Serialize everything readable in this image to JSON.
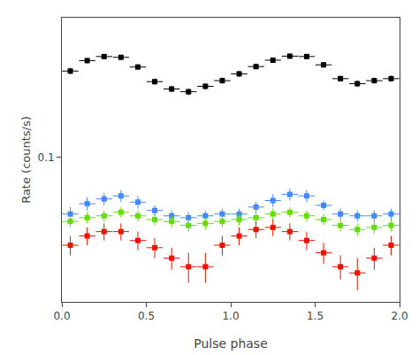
{
  "chart_data": {
    "type": "scatter",
    "xlabel": "Pulse phase",
    "ylabel": "Rate (counts/s)",
    "log": "y",
    "grid": false,
    "marker": "square",
    "xlim": [
      0.0,
      2.0
    ],
    "xticks": [
      {
        "value": 0.0,
        "label": "0.0"
      },
      0.5,
      {
        "value": 1.0,
        "label": "1.0"
      },
      1.5,
      {
        "value": 2.0,
        "label": "2.0"
      }
    ],
    "ylim": [
      0.025,
      0.38
    ],
    "yticks": [
      0.1
    ],
    "series": [
      {
        "color": "#000000",
        "x": [
          0.05,
          0.15,
          0.25,
          0.35,
          0.45,
          0.55,
          0.65,
          0.75,
          0.85,
          0.95,
          1.05,
          1.15,
          1.25,
          1.35,
          1.45,
          1.55,
          1.65,
          1.75,
          1.85,
          1.95
        ],
        "values": [
          0.228,
          0.252,
          0.262,
          0.26,
          0.237,
          0.206,
          0.192,
          0.187,
          0.197,
          0.208,
          0.222,
          0.238,
          0.253,
          0.263,
          0.262,
          0.242,
          0.212,
          0.202,
          0.208,
          0.212
        ],
        "yerr": [
          0.007,
          0.006,
          0.006,
          0.006,
          0.006,
          0.006,
          0.006,
          0.006,
          0.006,
          0.006,
          0.006,
          0.006,
          0.006,
          0.006,
          0.006,
          0.006,
          0.006,
          0.006,
          0.006,
          0.006
        ],
        "xerr": 0.048
      },
      {
        "color": "#4488ff",
        "x": [
          0.05,
          0.15,
          0.25,
          0.35,
          0.45,
          0.55,
          0.65,
          0.75,
          0.85,
          0.95,
          1.05,
          1.15,
          1.25,
          1.35,
          1.45,
          1.55,
          1.65,
          1.75,
          1.85,
          1.95
        ],
        "values": [
          0.058,
          0.064,
          0.067,
          0.069,
          0.065,
          0.06,
          0.057,
          0.056,
          0.057,
          0.058,
          0.058,
          0.062,
          0.066,
          0.07,
          0.069,
          0.063,
          0.058,
          0.057,
          0.057,
          0.058
        ],
        "yerr": [
          0.004,
          0.004,
          0.004,
          0.004,
          0.004,
          0.003,
          0.003,
          0.003,
          0.003,
          0.003,
          0.003,
          0.003,
          0.004,
          0.004,
          0.004,
          0.003,
          0.003,
          0.003,
          0.003,
          0.003
        ],
        "xerr": 0.048
      },
      {
        "color": "#66dd00",
        "x": [
          0.05,
          0.15,
          0.25,
          0.35,
          0.45,
          0.55,
          0.65,
          0.75,
          0.85,
          0.95,
          1.05,
          1.15,
          1.25,
          1.35,
          1.45,
          1.55,
          1.65,
          1.75,
          1.85,
          1.95
        ],
        "values": [
          0.054,
          0.056,
          0.057,
          0.059,
          0.057,
          0.055,
          0.054,
          0.052,
          0.053,
          0.054,
          0.055,
          0.056,
          0.058,
          0.059,
          0.057,
          0.055,
          0.052,
          0.05,
          0.051,
          0.052
        ],
        "yerr": [
          0.003,
          0.003,
          0.003,
          0.003,
          0.003,
          0.003,
          0.003,
          0.003,
          0.003,
          0.003,
          0.003,
          0.003,
          0.003,
          0.003,
          0.003,
          0.003,
          0.003,
          0.003,
          0.003,
          0.003
        ],
        "xerr": 0.048
      },
      {
        "color": "#ee1100",
        "x": [
          0.05,
          0.15,
          0.25,
          0.35,
          0.45,
          0.55,
          0.65,
          0.75,
          0.85,
          0.95,
          1.05,
          1.15,
          1.25,
          1.35,
          1.45,
          1.55,
          1.65,
          1.75,
          1.85,
          1.95
        ],
        "values": [
          0.043,
          0.047,
          0.049,
          0.049,
          0.045,
          0.042,
          0.038,
          0.035,
          0.035,
          0.043,
          0.047,
          0.05,
          0.051,
          0.049,
          0.045,
          0.04,
          0.035,
          0.033,
          0.038,
          0.043
        ],
        "yerr": [
          0.004,
          0.004,
          0.004,
          0.004,
          0.004,
          0.004,
          0.004,
          0.005,
          0.005,
          0.004,
          0.004,
          0.004,
          0.004,
          0.004,
          0.004,
          0.004,
          0.004,
          0.005,
          0.004,
          0.004
        ],
        "xerr": 0.048
      }
    ]
  }
}
